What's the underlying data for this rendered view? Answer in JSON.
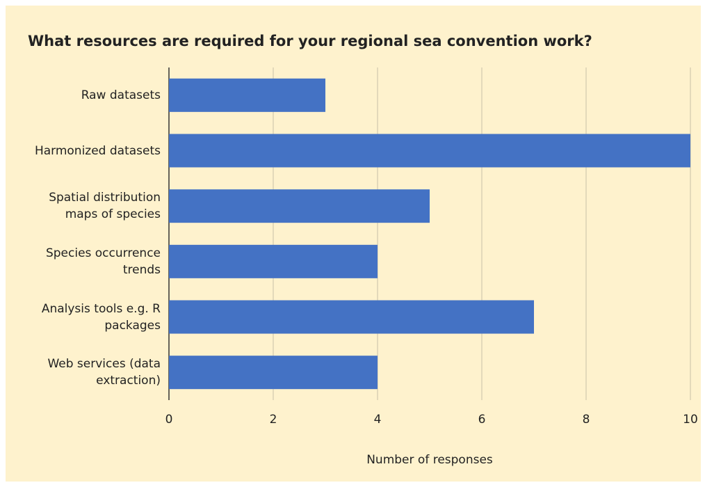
{
  "chart_data": {
    "type": "bar",
    "orientation": "horizontal",
    "title": "What resources are required for your regional sea convention work?",
    "categories": [
      "Raw datasets",
      "Harmonized datasets",
      "Spatial distribution maps of species",
      "Species occurrence trends",
      "Analysis tools e.g. R packages",
      "Web services (data extraction)"
    ],
    "values": [
      3,
      10,
      5,
      4,
      7,
      4
    ],
    "color": "#4472c4",
    "xlabel": "Number of responses",
    "xlim": [
      0,
      10
    ],
    "xticks": [
      0,
      2,
      4,
      6,
      8,
      10
    ],
    "grid": true
  }
}
